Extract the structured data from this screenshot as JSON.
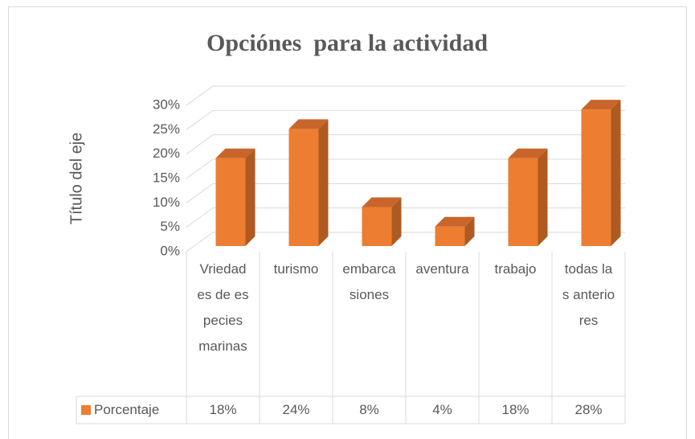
{
  "chart_data": {
    "type": "bar3d",
    "title": "Opciónes  para la actividad",
    "y_label": "Título del eje",
    "categories": [
      "Vriedades de especies marinas",
      "turismo",
      "embarcasiones",
      "aventura",
      "trabajo",
      "todas las anteriores"
    ],
    "series": [
      {
        "name": "Porcentaje",
        "color": "#ed7d31",
        "values": [
          18,
          24,
          8,
          4,
          18,
          28
        ],
        "value_labels": [
          "18%",
          "24%",
          "8%",
          "4%",
          "18%",
          "28%"
        ]
      }
    ],
    "ylim": [
      0,
      30
    ],
    "yticks": [
      {
        "value": 0,
        "label": "0%"
      },
      {
        "value": 5,
        "label": "5%"
      },
      {
        "value": 10,
        "label": "10%"
      },
      {
        "value": 15,
        "label": "15%"
      },
      {
        "value": 20,
        "label": "20%"
      },
      {
        "value": 25,
        "label": "25%"
      },
      {
        "value": 30,
        "label": "30%"
      }
    ],
    "grid": true,
    "data_table": true
  }
}
